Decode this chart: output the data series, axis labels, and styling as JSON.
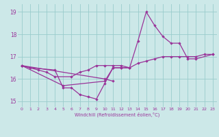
{
  "background_color": "#cce8e8",
  "grid_color": "#99cccc",
  "line_color": "#993399",
  "marker_color": "#993399",
  "xlabel": "Windchill (Refroidissement éolien,°C)",
  "xlim": [
    -0.5,
    23.5
  ],
  "ylim": [
    14.75,
    19.35
  ],
  "yticks": [
    15,
    16,
    17,
    18,
    19
  ],
  "xticks": [
    0,
    1,
    2,
    3,
    4,
    5,
    6,
    7,
    8,
    9,
    10,
    11,
    12,
    13,
    14,
    15,
    16,
    17,
    18,
    19,
    20,
    21,
    22,
    23
  ],
  "series": [
    {
      "x": [
        0,
        1,
        4,
        5,
        6,
        7,
        8,
        9,
        10,
        11,
        12,
        13,
        14,
        15,
        16,
        17,
        18,
        19,
        20,
        21,
        23
      ],
      "y": [
        16.6,
        16.5,
        16.4,
        15.6,
        15.6,
        15.3,
        15.2,
        15.1,
        15.8,
        16.5,
        16.5,
        16.5,
        17.7,
        19.0,
        18.4,
        17.9,
        17.6,
        17.6,
        16.9,
        16.9,
        17.1
      ]
    },
    {
      "x": [
        0,
        2,
        3,
        4,
        6,
        7,
        8,
        9,
        10,
        11,
        12,
        13,
        14,
        15,
        16,
        17,
        18,
        19,
        20,
        21,
        22,
        23
      ],
      "y": [
        16.6,
        16.4,
        16.3,
        16.1,
        16.1,
        16.3,
        16.4,
        16.6,
        16.6,
        16.6,
        16.6,
        16.5,
        16.7,
        16.8,
        16.9,
        17.0,
        17.0,
        17.0,
        17.0,
        17.0,
        17.1,
        17.1
      ]
    },
    {
      "x": [
        0,
        5,
        10,
        11,
        12,
        13
      ],
      "y": [
        16.6,
        15.7,
        15.9,
        16.5,
        16.5,
        16.5
      ]
    },
    {
      "x": [
        0,
        10,
        11
      ],
      "y": [
        16.6,
        16.0,
        15.9
      ]
    }
  ]
}
